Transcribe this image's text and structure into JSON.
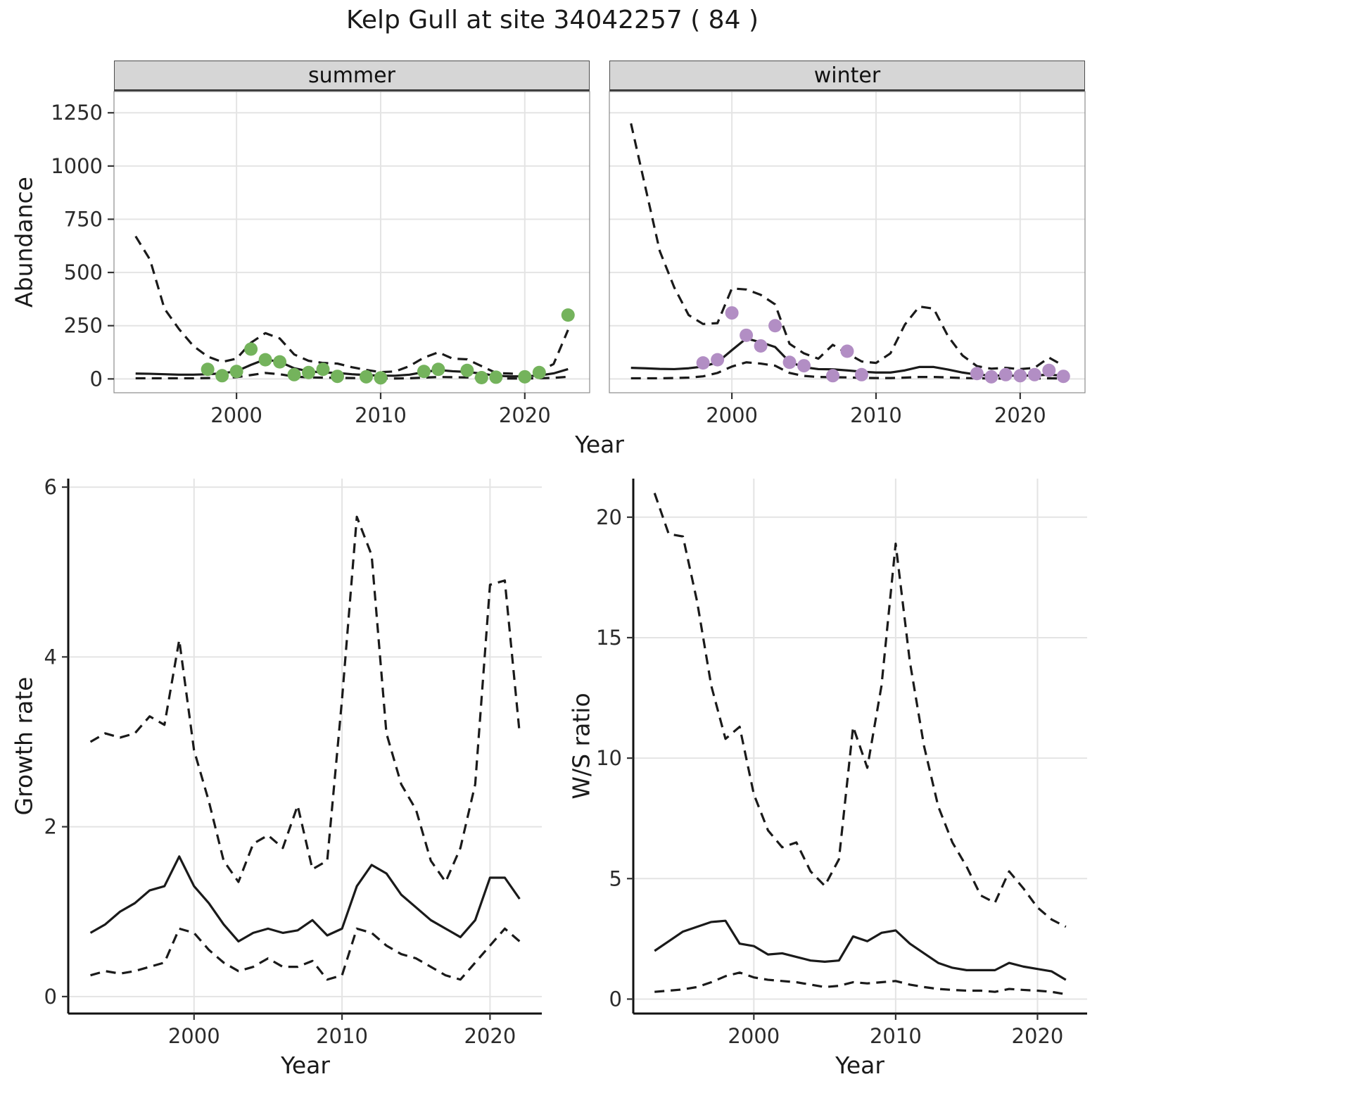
{
  "title": "Kelp Gull at site 34042257 ( 84 )",
  "top_row": {
    "ylabel": "Abundance",
    "xlabel": "Year"
  },
  "colors": {
    "summer_points": "#74b35c",
    "winter_points": "#b28ec4",
    "line": "#1a1a1a",
    "grid": "#e4e4e4",
    "strip_bg": "#d6d6d6"
  },
  "chart_data": [
    {
      "id": "abundance-summer",
      "type": "line",
      "facet_label": "summer",
      "xlabel": "Year",
      "ylabel": "Abundance",
      "xlim": [
        1991.5,
        2024.5
      ],
      "ylim": [
        -65,
        1350
      ],
      "x_ticks": [
        2000,
        2010,
        2020
      ],
      "y_ticks": [
        0,
        250,
        500,
        750,
        1000,
        1250
      ],
      "grid": true,
      "years": [
        1993,
        1994,
        1995,
        1996,
        1997,
        1998,
        1999,
        2000,
        2001,
        2002,
        2003,
        2004,
        2005,
        2006,
        2007,
        2008,
        2009,
        2010,
        2011,
        2012,
        2013,
        2014,
        2015,
        2016,
        2017,
        2018,
        2019,
        2020,
        2021,
        2022,
        2023
      ],
      "series": [
        {
          "name": "upper_95ci",
          "style": "dashed",
          "values": [
            670,
            560,
            330,
            235,
            155,
            105,
            80,
            95,
            170,
            215,
            190,
            115,
            85,
            75,
            72,
            55,
            42,
            32,
            35,
            60,
            100,
            125,
            95,
            92,
            60,
            28,
            25,
            22,
            35,
            70,
            230
          ]
        },
        {
          "name": "estimate",
          "style": "solid",
          "values": [
            25,
            24,
            22,
            20,
            20,
            22,
            26,
            36,
            66,
            92,
            80,
            50,
            36,
            30,
            28,
            22,
            18,
            15,
            15,
            20,
            32,
            42,
            36,
            33,
            25,
            15,
            12,
            12,
            16,
            26,
            46
          ]
        },
        {
          "name": "lower_95ci",
          "style": "dashed",
          "values": [
            3,
            3,
            3,
            3,
            3,
            4,
            5,
            8,
            18,
            28,
            22,
            11,
            7,
            6,
            5,
            4,
            3,
            2,
            2,
            3,
            6,
            9,
            8,
            7,
            4,
            2,
            2,
            2,
            3,
            5,
            10
          ]
        }
      ],
      "points": {
        "name": "observed-counts-summer",
        "color": "#74b35c",
        "x": [
          1998,
          1999,
          2000,
          2001,
          2002,
          2003,
          2004,
          2005,
          2006,
          2007,
          2009,
          2010,
          2013,
          2014,
          2016,
          2017,
          2018,
          2020,
          2021,
          2023
        ],
        "y": [
          45,
          15,
          35,
          140,
          90,
          80,
          20,
          30,
          45,
          12,
          10,
          5,
          35,
          45,
          40,
          6,
          8,
          10,
          30,
          300
        ]
      }
    },
    {
      "id": "abundance-winter",
      "type": "line",
      "facet_label": "winter",
      "xlabel": "Year",
      "ylabel": "Abundance",
      "xlim": [
        1991.5,
        2024.5
      ],
      "ylim": [
        -65,
        1350
      ],
      "x_ticks": [
        2000,
        2010,
        2020
      ],
      "y_ticks": [
        0,
        250,
        500,
        750,
        1000,
        1250
      ],
      "grid": true,
      "years": [
        1993,
        1994,
        1995,
        1996,
        1997,
        1998,
        1999,
        2000,
        2001,
        2002,
        2003,
        2004,
        2005,
        2006,
        2007,
        2008,
        2009,
        2010,
        2011,
        2012,
        2013,
        2014,
        2015,
        2016,
        2017,
        2018,
        2019,
        2020,
        2021,
        2022,
        2023
      ],
      "series": [
        {
          "name": "upper_95ci",
          "style": "dashed",
          "values": [
            1200,
            900,
            600,
            430,
            300,
            258,
            262,
            425,
            420,
            395,
            350,
            165,
            120,
            95,
            160,
            120,
            82,
            75,
            120,
            255,
            340,
            330,
            200,
            110,
            60,
            48,
            52,
            46,
            52,
            100,
            62
          ]
        },
        {
          "name": "estimate",
          "style": "solid",
          "values": [
            52,
            50,
            47,
            46,
            50,
            58,
            78,
            135,
            190,
            172,
            150,
            80,
            55,
            46,
            45,
            40,
            34,
            30,
            30,
            40,
            56,
            56,
            44,
            30,
            20,
            16,
            15,
            15,
            16,
            20,
            15
          ]
        },
        {
          "name": "lower_95ci",
          "style": "dashed",
          "values": [
            3,
            3,
            3,
            4,
            6,
            12,
            28,
            58,
            78,
            72,
            62,
            28,
            14,
            9,
            8,
            7,
            5,
            4,
            4,
            6,
            9,
            9,
            7,
            4,
            3,
            2,
            2,
            2,
            2,
            3,
            2
          ]
        }
      ],
      "points": {
        "name": "observed-counts-winter",
        "color": "#b28ec4",
        "x": [
          1998,
          1999,
          2000,
          2001,
          2002,
          2003,
          2004,
          2005,
          2007,
          2008,
          2009,
          2017,
          2018,
          2019,
          2020,
          2021,
          2022,
          2023
        ],
        "y": [
          75,
          90,
          310,
          205,
          155,
          250,
          78,
          62,
          15,
          130,
          20,
          25,
          10,
          20,
          15,
          20,
          40,
          12
        ]
      }
    },
    {
      "id": "growth-rate",
      "type": "line",
      "facet_label": "",
      "xlabel": "Year",
      "ylabel": "Growth rate",
      "xlim": [
        1991.5,
        2023.5
      ],
      "ylim": [
        -0.2,
        6.1
      ],
      "x_ticks": [
        2000,
        2010,
        2020
      ],
      "y_ticks": [
        0,
        2,
        4,
        6
      ],
      "grid": true,
      "years": [
        1993,
        1994,
        1995,
        1996,
        1997,
        1998,
        1999,
        2000,
        2001,
        2002,
        2003,
        2004,
        2005,
        2006,
        2007,
        2008,
        2009,
        2010,
        2011,
        2012,
        2013,
        2014,
        2015,
        2016,
        2017,
        2018,
        2019,
        2020,
        2021,
        2022
      ],
      "series": [
        {
          "name": "upper_95ci",
          "style": "dashed",
          "values": [
            3.0,
            3.1,
            3.05,
            3.1,
            3.3,
            3.2,
            4.2,
            2.9,
            2.3,
            1.6,
            1.35,
            1.8,
            1.9,
            1.75,
            2.25,
            1.5,
            1.6,
            3.5,
            5.65,
            5.2,
            3.1,
            2.5,
            2.2,
            1.6,
            1.35,
            1.75,
            2.5,
            4.85,
            4.9,
            3.1
          ]
        },
        {
          "name": "estimate",
          "style": "solid",
          "values": [
            0.75,
            0.85,
            1.0,
            1.1,
            1.25,
            1.3,
            1.65,
            1.3,
            1.1,
            0.85,
            0.65,
            0.75,
            0.8,
            0.75,
            0.78,
            0.9,
            0.72,
            0.8,
            1.3,
            1.55,
            1.45,
            1.2,
            1.05,
            0.9,
            0.8,
            0.7,
            0.9,
            1.4,
            1.4,
            1.15
          ]
        },
        {
          "name": "lower_95ci",
          "style": "dashed",
          "values": [
            0.25,
            0.3,
            0.27,
            0.3,
            0.35,
            0.4,
            0.8,
            0.75,
            0.55,
            0.4,
            0.3,
            0.35,
            0.45,
            0.35,
            0.35,
            0.42,
            0.2,
            0.25,
            0.8,
            0.75,
            0.6,
            0.5,
            0.45,
            0.35,
            0.25,
            0.2,
            0.4,
            0.6,
            0.8,
            0.65
          ]
        }
      ]
    },
    {
      "id": "ws-ratio",
      "type": "line",
      "facet_label": "",
      "xlabel": "Year",
      "ylabel": "W/S ratio",
      "xlim": [
        1991.5,
        2023.5
      ],
      "ylim": [
        -0.6,
        21.6
      ],
      "x_ticks": [
        2000,
        2010,
        2020
      ],
      "y_ticks": [
        0,
        5,
        10,
        15,
        20
      ],
      "grid": true,
      "years": [
        1993,
        1994,
        1995,
        1996,
        1997,
        1998,
        1999,
        2000,
        2001,
        2002,
        2003,
        2004,
        2005,
        2006,
        2007,
        2008,
        2009,
        2010,
        2011,
        2012,
        2013,
        2014,
        2015,
        2016,
        2017,
        2018,
        2019,
        2020,
        2021,
        2022
      ],
      "series": [
        {
          "name": "upper_95ci",
          "style": "dashed",
          "values": [
            21.0,
            19.3,
            19.2,
            16.5,
            13.0,
            10.8,
            11.3,
            8.5,
            7.0,
            6.3,
            6.5,
            5.3,
            4.7,
            5.8,
            11.3,
            9.6,
            13.0,
            18.9,
            14.0,
            10.5,
            8.0,
            6.5,
            5.5,
            4.3,
            4.0,
            5.3,
            4.6,
            3.8,
            3.3,
            3.0
          ]
        },
        {
          "name": "estimate",
          "style": "solid",
          "values": [
            2.0,
            2.4,
            2.8,
            3.0,
            3.2,
            3.25,
            2.3,
            2.2,
            1.85,
            1.9,
            1.75,
            1.6,
            1.55,
            1.6,
            2.6,
            2.4,
            2.75,
            2.85,
            2.3,
            1.9,
            1.5,
            1.3,
            1.2,
            1.2,
            1.2,
            1.5,
            1.35,
            1.25,
            1.15,
            0.8
          ]
        },
        {
          "name": "lower_95ci",
          "style": "dashed",
          "values": [
            0.3,
            0.35,
            0.4,
            0.5,
            0.7,
            0.95,
            1.1,
            0.9,
            0.8,
            0.75,
            0.7,
            0.6,
            0.5,
            0.55,
            0.7,
            0.65,
            0.7,
            0.75,
            0.6,
            0.5,
            0.42,
            0.38,
            0.35,
            0.35,
            0.3,
            0.42,
            0.38,
            0.35,
            0.3,
            0.2
          ]
        }
      ]
    }
  ]
}
